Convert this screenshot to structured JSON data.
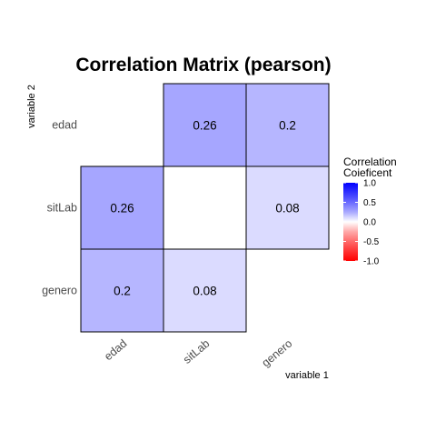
{
  "chart_data": {
    "type": "heatmap",
    "title": "Correlation Matrix (pearson)",
    "xlabel": "variable 1",
    "ylabel": "variable 2",
    "x_categories": [
      "edad",
      "sitLab",
      "genero"
    ],
    "y_categories": [
      "edad",
      "sitLab",
      "genero"
    ],
    "cells": [
      {
        "x": "sitLab",
        "y": "edad",
        "value": 0.26,
        "label": "0.26"
      },
      {
        "x": "genero",
        "y": "edad",
        "value": 0.2,
        "label": "0.2"
      },
      {
        "x": "edad",
        "y": "sitLab",
        "value": 0.26,
        "label": "0.26"
      },
      {
        "x": "genero",
        "y": "sitLab",
        "value": 0.08,
        "label": "0.08"
      },
      {
        "x": "edad",
        "y": "genero",
        "value": 0.2,
        "label": "0.2"
      },
      {
        "x": "sitLab",
        "y": "genero",
        "value": 0.08,
        "label": "0.08"
      }
    ],
    "legend": {
      "title_lines": [
        "Correlation",
        "Coieficent"
      ],
      "range": [
        -1.0,
        1.0
      ],
      "ticks": [
        {
          "value": 1.0,
          "label": "1.0"
        },
        {
          "value": 0.5,
          "label": "0.5"
        },
        {
          "value": 0.0,
          "label": "0.0"
        },
        {
          "value": -0.5,
          "label": "-0.5"
        },
        {
          "value": -1.0,
          "label": "-1.0"
        }
      ],
      "colors": {
        "low": "#ff0000",
        "mid": "#ffffff",
        "high": "#0000ff"
      }
    }
  }
}
